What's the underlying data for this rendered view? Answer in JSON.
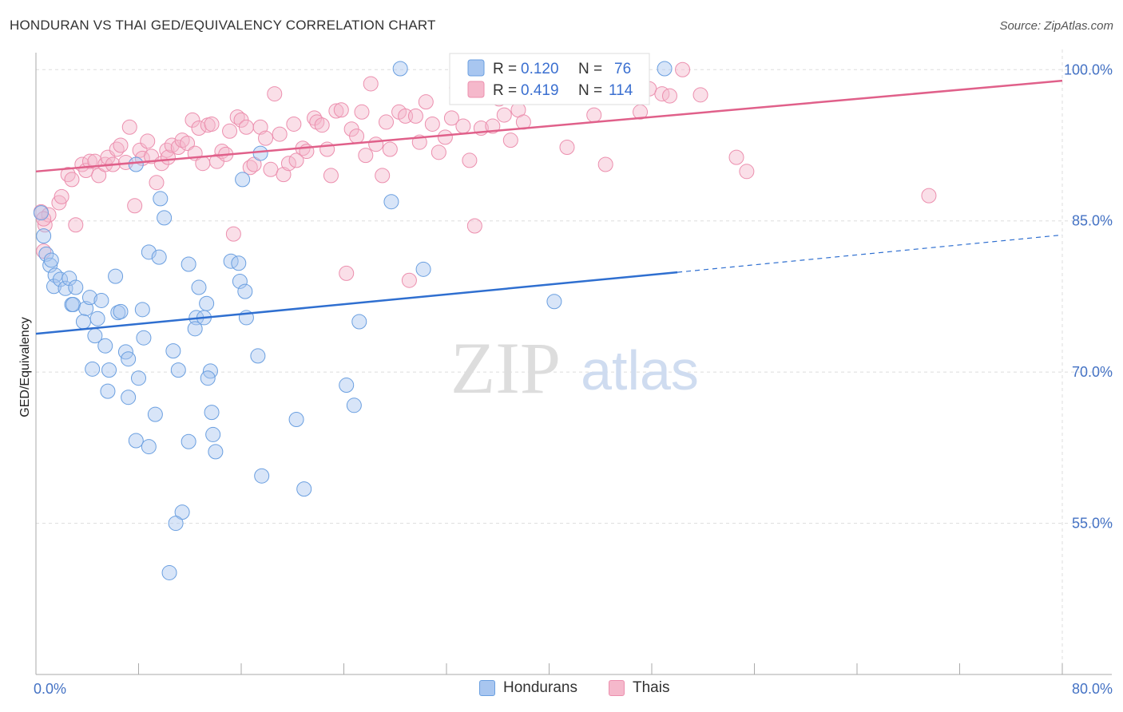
{
  "header": {
    "title": "HONDURAN VS THAI GED/EQUIVALENCY CORRELATION CHART",
    "source": "Source: ZipAtlas.com"
  },
  "watermark": {
    "zip": "ZIP",
    "atlas": "atlas"
  },
  "legend": {
    "rows": [
      {
        "r_label": "R = ",
        "r_value": "0.120",
        "n_label": "N = ",
        "n_value": "76"
      },
      {
        "r_label": "R = ",
        "r_value": "0.419",
        "n_label": "N = ",
        "n_value": "114"
      }
    ]
  },
  "bottom_legend": {
    "items": [
      "Hondurans",
      "Thais"
    ]
  },
  "colors": {
    "blue_fill": "#a8c6f0",
    "blue_stroke": "#6a9fe0",
    "blue_line": "#2f6fd0",
    "pink_fill": "#f5b8cb",
    "pink_stroke": "#ec8fae",
    "pink_line": "#e0608a",
    "tick_text": "#4472c4",
    "grid": "#dddddd"
  },
  "chart_data": {
    "type": "scatter",
    "title": "HONDURAN VS THAI GED/EQUIVALENCY CORRELATION CHART",
    "xlabel": "",
    "ylabel": "GED/Equivalency",
    "xlim": [
      0,
      80
    ],
    "ylim": [
      40,
      102
    ],
    "x_tick_labels": [
      "0.0%",
      "80.0%"
    ],
    "y_ticks": [
      55,
      70,
      85,
      100
    ],
    "y_tick_labels": [
      "55.0%",
      "70.0%",
      "85.0%",
      "100.0%"
    ],
    "grid": true,
    "legend_position": "top-center",
    "series": [
      {
        "name": "Hondurans",
        "r": 0.12,
        "n": 76,
        "trend": {
          "x0": 0,
          "y0": 73.8,
          "x1": 50,
          "y1": 79.9,
          "dashed_to_x": 80,
          "dashed_to_y": 83.6
        },
        "points": [
          [
            0.4,
            85.8
          ],
          [
            0.6,
            83.5
          ],
          [
            0.8,
            81.7
          ],
          [
            1.1,
            80.6
          ],
          [
            1.2,
            81.1
          ],
          [
            1.5,
            79.6
          ],
          [
            1.4,
            78.5
          ],
          [
            1.9,
            79.2
          ],
          [
            2.3,
            78.3
          ],
          [
            2.6,
            79.3
          ],
          [
            3.1,
            78.4
          ],
          [
            2.8,
            76.7
          ],
          [
            2.9,
            76.7
          ],
          [
            3.9,
            76.3
          ],
          [
            4.2,
            77.4
          ],
          [
            5.1,
            77.1
          ],
          [
            3.7,
            75.0
          ],
          [
            4.8,
            75.3
          ],
          [
            4.6,
            73.6
          ],
          [
            5.4,
            72.6
          ],
          [
            6.2,
            79.5
          ],
          [
            6.4,
            75.9
          ],
          [
            6.6,
            76.0
          ],
          [
            8.3,
            76.2
          ],
          [
            8.8,
            81.9
          ],
          [
            9.6,
            81.4
          ],
          [
            9.7,
            87.2
          ],
          [
            10.0,
            85.3
          ],
          [
            11.9,
            80.7
          ],
          [
            12.7,
            78.4
          ],
          [
            13.3,
            76.8
          ],
          [
            12.5,
            75.4
          ],
          [
            13.1,
            75.4
          ],
          [
            12.4,
            74.3
          ],
          [
            8.4,
            73.4
          ],
          [
            7.0,
            72.0
          ],
          [
            7.2,
            71.3
          ],
          [
            10.7,
            72.1
          ],
          [
            5.7,
            70.2
          ],
          [
            4.4,
            70.3
          ],
          [
            8.0,
            69.4
          ],
          [
            11.1,
            70.2
          ],
          [
            13.6,
            70.1
          ],
          [
            13.4,
            69.4
          ],
          [
            5.6,
            68.1
          ],
          [
            7.2,
            67.5
          ],
          [
            9.3,
            65.8
          ],
          [
            13.7,
            66.0
          ],
          [
            7.8,
            63.2
          ],
          [
            8.8,
            62.6
          ],
          [
            11.9,
            63.1
          ],
          [
            13.8,
            63.8
          ],
          [
            14.0,
            62.1
          ],
          [
            15.2,
            81.0
          ],
          [
            15.8,
            80.8
          ],
          [
            15.9,
            79.0
          ],
          [
            16.3,
            78.0
          ],
          [
            16.4,
            75.4
          ],
          [
            17.3,
            71.6
          ],
          [
            17.6,
            59.7
          ],
          [
            20.3,
            65.3
          ],
          [
            20.9,
            58.4
          ],
          [
            11.4,
            56.1
          ],
          [
            10.9,
            55.0
          ],
          [
            10.4,
            50.1
          ],
          [
            16.1,
            89.1
          ],
          [
            17.5,
            91.7
          ],
          [
            7.8,
            90.6
          ],
          [
            24.2,
            68.7
          ],
          [
            24.8,
            66.7
          ],
          [
            25.2,
            75.0
          ],
          [
            27.7,
            86.9
          ],
          [
            28.4,
            100.1
          ],
          [
            30.2,
            80.2
          ],
          [
            40.4,
            77.0
          ],
          [
            49.0,
            100.1
          ]
        ]
      },
      {
        "name": "Thais",
        "r": 0.419,
        "n": 114,
        "trend": {
          "x0": 0,
          "y0": 89.9,
          "x1": 80,
          "y1": 98.9
        },
        "points": [
          [
            0.4,
            85.9
          ],
          [
            0.7,
            84.6
          ],
          [
            0.6,
            82.0
          ],
          [
            1.0,
            85.6
          ],
          [
            1.8,
            86.8
          ],
          [
            2.0,
            87.4
          ],
          [
            2.5,
            89.6
          ],
          [
            2.8,
            89.1
          ],
          [
            3.1,
            84.6
          ],
          [
            3.6,
            90.6
          ],
          [
            3.9,
            90.0
          ],
          [
            4.2,
            90.9
          ],
          [
            4.6,
            90.9
          ],
          [
            4.9,
            89.5
          ],
          [
            5.4,
            90.6
          ],
          [
            5.6,
            91.3
          ],
          [
            6.0,
            90.6
          ],
          [
            6.3,
            92.1
          ],
          [
            6.6,
            92.5
          ],
          [
            7.0,
            90.8
          ],
          [
            7.3,
            94.3
          ],
          [
            7.7,
            86.5
          ],
          [
            8.1,
            92.0
          ],
          [
            8.3,
            91.2
          ],
          [
            8.7,
            92.9
          ],
          [
            9.0,
            91.4
          ],
          [
            9.4,
            88.8
          ],
          [
            9.8,
            90.7
          ],
          [
            10.2,
            92.0
          ],
          [
            10.3,
            91.3
          ],
          [
            10.6,
            92.5
          ],
          [
            11.1,
            92.3
          ],
          [
            11.4,
            93.0
          ],
          [
            11.8,
            92.7
          ],
          [
            12.2,
            95.0
          ],
          [
            12.4,
            91.7
          ],
          [
            12.7,
            94.2
          ],
          [
            13.0,
            90.7
          ],
          [
            13.4,
            94.5
          ],
          [
            13.7,
            94.6
          ],
          [
            14.1,
            90.9
          ],
          [
            14.5,
            91.9
          ],
          [
            14.8,
            91.6
          ],
          [
            15.1,
            93.9
          ],
          [
            15.4,
            83.7
          ],
          [
            15.7,
            95.3
          ],
          [
            16.0,
            95.0
          ],
          [
            16.4,
            94.3
          ],
          [
            16.7,
            90.3
          ],
          [
            17.0,
            90.6
          ],
          [
            17.5,
            94.3
          ],
          [
            17.9,
            93.2
          ],
          [
            18.3,
            90.1
          ],
          [
            18.6,
            97.6
          ],
          [
            19.0,
            93.6
          ],
          [
            19.3,
            89.6
          ],
          [
            19.7,
            90.7
          ],
          [
            20.1,
            94.6
          ],
          [
            20.3,
            91.0
          ],
          [
            20.8,
            92.2
          ],
          [
            21.1,
            91.9
          ],
          [
            21.7,
            95.2
          ],
          [
            21.9,
            94.8
          ],
          [
            22.3,
            94.5
          ],
          [
            22.7,
            92.1
          ],
          [
            23.0,
            89.5
          ],
          [
            23.4,
            95.9
          ],
          [
            23.8,
            96.0
          ],
          [
            24.2,
            79.8
          ],
          [
            24.6,
            94.1
          ],
          [
            25.0,
            93.4
          ],
          [
            25.4,
            95.8
          ],
          [
            25.7,
            91.5
          ],
          [
            26.1,
            98.6
          ],
          [
            26.5,
            92.6
          ],
          [
            27.0,
            89.5
          ],
          [
            27.3,
            94.8
          ],
          [
            27.6,
            92.1
          ],
          [
            28.3,
            95.8
          ],
          [
            28.8,
            95.4
          ],
          [
            29.1,
            79.1
          ],
          [
            29.6,
            95.4
          ],
          [
            29.9,
            92.8
          ],
          [
            30.4,
            96.8
          ],
          [
            30.9,
            94.6
          ],
          [
            31.4,
            91.8
          ],
          [
            31.9,
            93.3
          ],
          [
            32.4,
            95.2
          ],
          [
            32.8,
            98.2
          ],
          [
            33.3,
            94.4
          ],
          [
            33.8,
            91.0
          ],
          [
            34.2,
            84.5
          ],
          [
            34.7,
            94.2
          ],
          [
            35.2,
            97.9
          ],
          [
            35.6,
            94.4
          ],
          [
            36.1,
            97.1
          ],
          [
            36.5,
            95.5
          ],
          [
            37.0,
            93.0
          ],
          [
            37.6,
            96.0
          ],
          [
            38.0,
            94.8
          ],
          [
            39.2,
            97.5
          ],
          [
            41.4,
            92.3
          ],
          [
            43.5,
            95.5
          ],
          [
            44.4,
            90.6
          ],
          [
            47.1,
            95.8
          ],
          [
            47.8,
            98.1
          ],
          [
            48.8,
            97.6
          ],
          [
            49.4,
            97.4
          ],
          [
            50.4,
            100.0
          ],
          [
            51.8,
            97.5
          ],
          [
            54.6,
            91.3
          ],
          [
            55.4,
            89.9
          ],
          [
            69.6,
            87.5
          ],
          [
            0.6,
            85.2
          ]
        ]
      }
    ]
  }
}
